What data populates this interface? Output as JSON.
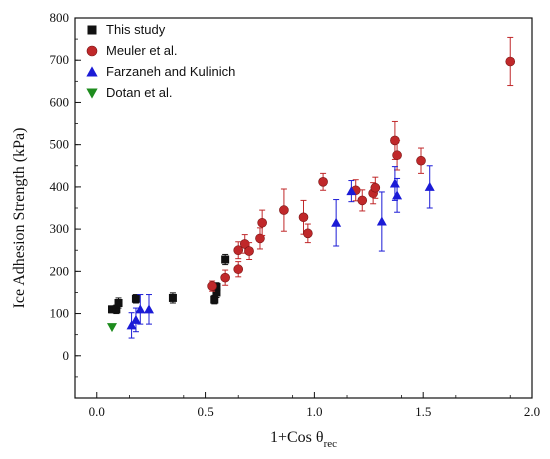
{
  "chart_data": {
    "type": "scatter",
    "xlabel": "1+Cos θrec",
    "xlabel_main": "1+Cos θ",
    "xlabel_sub": "rec",
    "ylabel": "Ice Adhesion Strength (kPa)",
    "xlim": [
      -0.1,
      2.0
    ],
    "ylim": [
      -100,
      800
    ],
    "x_ticks": [
      0.0,
      0.5,
      1.0,
      1.5,
      2.0
    ],
    "x_tick_labels": [
      "0.0",
      "0.5",
      "1.0",
      "1.5",
      "2.0"
    ],
    "y_ticks": [
      0,
      100,
      200,
      300,
      400,
      500,
      600,
      700,
      800
    ],
    "y_tick_labels": [
      "0",
      "100",
      "200",
      "300",
      "400",
      "500",
      "600",
      "700",
      "800"
    ],
    "grid": false,
    "legend_position": "top-left",
    "series": [
      {
        "name": "This study",
        "marker": "square",
        "color": "#111111",
        "points": [
          {
            "x": 0.07,
            "y": 110,
            "err": 8
          },
          {
            "x": 0.09,
            "y": 110,
            "err": 10
          },
          {
            "x": 0.1,
            "y": 125,
            "err": 12
          },
          {
            "x": 0.18,
            "y": 135,
            "err": 10
          },
          {
            "x": 0.35,
            "y": 137,
            "err": 12
          },
          {
            "x": 0.54,
            "y": 133,
            "err": 10
          },
          {
            "x": 0.55,
            "y": 150,
            "err": 12
          },
          {
            "x": 0.55,
            "y": 163,
            "err": 10
          },
          {
            "x": 0.59,
            "y": 228,
            "err": 12
          }
        ]
      },
      {
        "name": "Meuler et al.",
        "marker": "circle",
        "color": "#c0282a",
        "points": [
          {
            "x": 0.53,
            "y": 165,
            "err": 12
          },
          {
            "x": 0.59,
            "y": 185,
            "err": 18
          },
          {
            "x": 0.65,
            "y": 205,
            "err": 18
          },
          {
            "x": 0.65,
            "y": 250,
            "err": 20
          },
          {
            "x": 0.68,
            "y": 265,
            "err": 22
          },
          {
            "x": 0.7,
            "y": 248,
            "err": 20
          },
          {
            "x": 0.75,
            "y": 278,
            "err": 25
          },
          {
            "x": 0.76,
            "y": 315,
            "err": 30
          },
          {
            "x": 0.86,
            "y": 345,
            "err": 50
          },
          {
            "x": 0.95,
            "y": 328,
            "err": 40
          },
          {
            "x": 0.97,
            "y": 290,
            "err": 22
          },
          {
            "x": 1.04,
            "y": 412,
            "err": 20
          },
          {
            "x": 1.19,
            "y": 392,
            "err": 25
          },
          {
            "x": 1.22,
            "y": 368,
            "err": 25
          },
          {
            "x": 1.27,
            "y": 385,
            "err": 25
          },
          {
            "x": 1.28,
            "y": 398,
            "err": 25
          },
          {
            "x": 1.37,
            "y": 510,
            "err": 45
          },
          {
            "x": 1.38,
            "y": 475,
            "err": 35
          },
          {
            "x": 1.49,
            "y": 462,
            "err": 30
          },
          {
            "x": 1.9,
            "y": 697,
            "err": 57
          }
        ]
      },
      {
        "name": "Farzaneh and Kulinich",
        "marker": "triangle-up",
        "color": "#1b1bd6",
        "points": [
          {
            "x": 0.16,
            "y": 72,
            "err": 30
          },
          {
            "x": 0.18,
            "y": 85,
            "err": 28
          },
          {
            "x": 0.2,
            "y": 110,
            "err": 35
          },
          {
            "x": 0.24,
            "y": 110,
            "err": 35
          },
          {
            "x": 1.1,
            "y": 315,
            "err": 55
          },
          {
            "x": 1.17,
            "y": 390,
            "err": 25
          },
          {
            "x": 1.31,
            "y": 318,
            "err": 70
          },
          {
            "x": 1.37,
            "y": 408,
            "err": 40
          },
          {
            "x": 1.38,
            "y": 380,
            "err": 40
          },
          {
            "x": 1.53,
            "y": 400,
            "err": 50
          }
        ]
      },
      {
        "name": "Dotan et al.",
        "marker": "triangle-down",
        "color": "#1e8c1e",
        "points": [
          {
            "x": 0.07,
            "y": 68,
            "err": 0
          }
        ]
      }
    ]
  }
}
